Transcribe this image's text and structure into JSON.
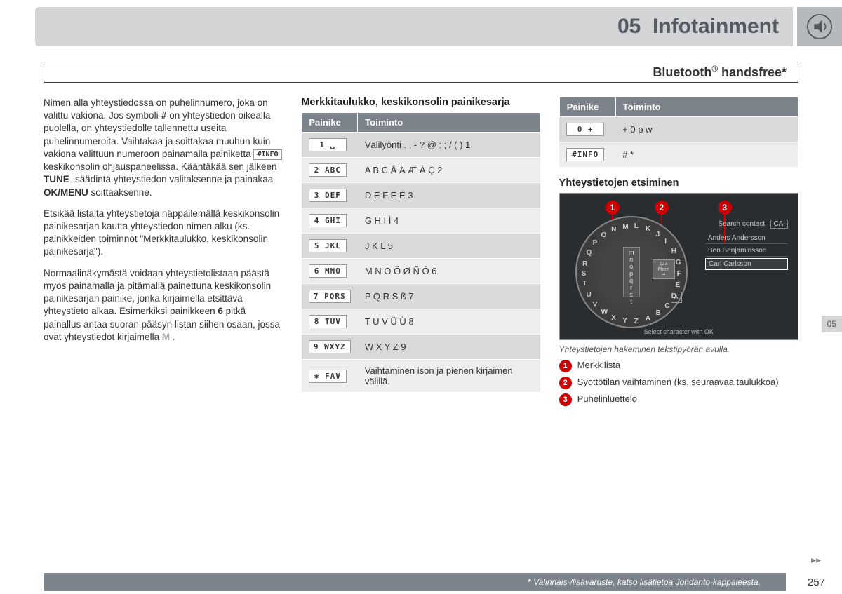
{
  "header": {
    "chapter_no": "05",
    "chapter_title": "Infotainment"
  },
  "subheader": {
    "text": "Bluetooth® handsfree*"
  },
  "side_tab": "05",
  "page_number": "257",
  "footer": {
    "star": "*",
    "text": "Valinnais-/lisävaruste, katso lisätietoa Johdanto-kappaleesta."
  },
  "col1": {
    "p1a": "Nimen alla yhteystiedossa on puhelinnumero, joka on valittu vakiona. Jos symboli ",
    "hash": "#",
    "p1b": " on yhteystiedon oikealla puolella, on yhteystiedolle tallennettu useita puhelinnumeroita. Vaihtakaa ja soittakaa muuhun kuin vakiona valittuun numeroon painamalla painiketta ",
    "infokey": "#INFO",
    "p1c": " keskikonsolin ohjauspaneelissa. Kääntäkää sen jälkeen ",
    "tune": "TUNE",
    "p1d": "-säädintä yhteystiedon valitaksenne ja painakaa ",
    "okmenu": "OK/MENU",
    "p1e": " soittaaksenne.",
    "p2": "Etsikää listalta yhteystietoja näppäilemällä keskikonsolin painikesarjan kautta yhteystiedon nimen alku (ks. painikkeiden toiminnot \"Merkkitaulukko, keskikonsolin painikesarja\").",
    "p3a": "Normaalinäkymästä voidaan yhteystietolistaan päästä myös painamalla ja pitämällä painettuna keskikonsolin painikesarjan painike, jonka kirjaimella etsittävä yhteystieto alkaa. Esimerkiksi painikkeen ",
    "p3key": "6",
    "p3b": " pitkä painallus antaa suoran pääsyn listan siihen osaan, jossa ovat yhteystiedot kirjaimella ",
    "p3letter": "M",
    "p3c": "."
  },
  "col2": {
    "heading": "Merkkitaulukko, keskikonsolin painikesarja",
    "th1": "Painike",
    "th2": "Toiminto",
    "rows": [
      {
        "k": "1 ␣",
        "v": "Välilyönti . , - ? @ : ; / ( ) 1"
      },
      {
        "k": "2 ABC",
        "v": "A B C Å Ä Æ À Ç 2"
      },
      {
        "k": "3 DEF",
        "v": "D E F È É 3"
      },
      {
        "k": "4 GHI",
        "v": "G H I Ì 4"
      },
      {
        "k": "5 JKL",
        "v": "J K L 5"
      },
      {
        "k": "6 MNO",
        "v": "M N O Ö Ø Ñ Ò 6"
      },
      {
        "k": "7 PQRS",
        "v": "P Q R S ß 7"
      },
      {
        "k": "8 TUV",
        "v": "T U V Ü Ù 8"
      },
      {
        "k": "9 WXYZ",
        "v": "W X Y Z 9"
      },
      {
        "k": "✱ FAV",
        "v": "Vaihtaminen ison ja pienen kirjaimen välillä."
      }
    ]
  },
  "col3": {
    "th1": "Painike",
    "th2": "Toiminto",
    "rows": [
      {
        "k": "0 +",
        "v": "+ 0 p w"
      },
      {
        "k": "#INFO",
        "v": "# *"
      }
    ],
    "heading2": "Yhteystietojen etsiminen",
    "caption": "Yhteystietojen hakeminen tekstipyörän avulla.",
    "legend": [
      {
        "n": "1",
        "t": "Merkkilista"
      },
      {
        "n": "2",
        "t": "Syöttötilan vaihtaminen (ks. seuraavaa taulukkoa)"
      },
      {
        "n": "3",
        "t": "Puhelinluettelo"
      }
    ],
    "fig": {
      "search_label": "Search contact",
      "search_val": "CA|",
      "contacts": [
        "Anders Andersson",
        "Ben Benjaminsson",
        "Carl Carlsson"
      ],
      "selected_index": 2,
      "more": "123\nMore\n⇒",
      "footer": "Select character with OK",
      "center_letters": [
        "m",
        "n",
        "o",
        "p",
        "q",
        "r",
        "s",
        "t"
      ],
      "wheel_letters": [
        {
          "t": "R",
          "a": 192
        },
        {
          "t": "Q",
          "a": 206
        },
        {
          "t": "P",
          "a": 220
        },
        {
          "t": "O",
          "a": 234
        },
        {
          "t": "N",
          "a": 248
        },
        {
          "t": "M",
          "a": 262
        },
        {
          "t": "L",
          "a": 276
        },
        {
          "t": "K",
          "a": 290
        },
        {
          "t": "J",
          "a": 304
        },
        {
          "t": "I",
          "a": 318
        },
        {
          "t": "H",
          "a": 332
        },
        {
          "t": "G",
          "a": 346
        },
        {
          "t": "F",
          "a": 0
        },
        {
          "t": "E",
          "a": 14
        },
        {
          "t": "D",
          "a": 28
        },
        {
          "t": "C",
          "a": 42
        },
        {
          "t": "B",
          "a": 56
        },
        {
          "t": "A",
          "a": 70
        },
        {
          "t": "Z",
          "a": 84
        },
        {
          "t": "Y",
          "a": 98
        },
        {
          "t": "X",
          "a": 112
        },
        {
          "t": "W",
          "a": 126
        },
        {
          "t": "V",
          "a": 140
        },
        {
          "t": "U",
          "a": 154
        },
        {
          "t": "T",
          "a": 168
        },
        {
          "t": "S",
          "a": 180
        }
      ]
    }
  }
}
